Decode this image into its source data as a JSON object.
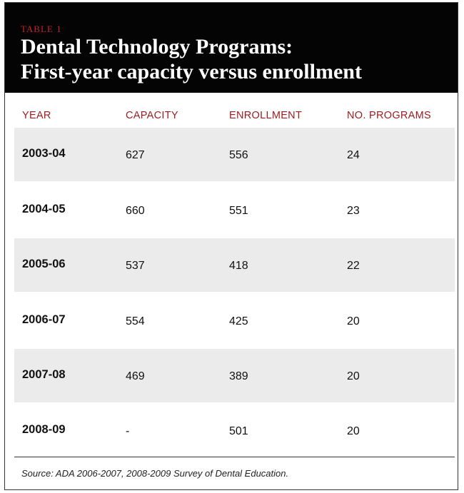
{
  "header": {
    "kicker": "TABLE 1",
    "title_line1": "Dental Technology Programs:",
    "title_line2": "First-year capacity versus enrollment"
  },
  "columns": [
    "YEAR",
    "CAPACITY",
    "ENROLLMENT",
    "NO. PROGRAMS"
  ],
  "rows": [
    {
      "year": "2003-04",
      "capacity": "627",
      "enrollment": "556",
      "programs": "24"
    },
    {
      "year": "2004-05",
      "capacity": "660",
      "enrollment": "551",
      "programs": "23"
    },
    {
      "year": "2005-06",
      "capacity": "537",
      "enrollment": "418",
      "programs": "22"
    },
    {
      "year": "2006-07",
      "capacity": "554",
      "enrollment": "425",
      "programs": "20"
    },
    {
      "year": "2007-08",
      "capacity": "469",
      "enrollment": "389",
      "programs": "20"
    },
    {
      "year": "2008-09",
      "capacity": "-",
      "enrollment": "501",
      "programs": "20"
    }
  ],
  "source": "Source: ADA 2006-2007, 2008-2009 Survey of Dental Education.",
  "colors": {
    "header_bg": "#040404",
    "kicker": "#c8202e",
    "column_header": "#9b1b1e",
    "row_shade": "#ebebeb"
  }
}
